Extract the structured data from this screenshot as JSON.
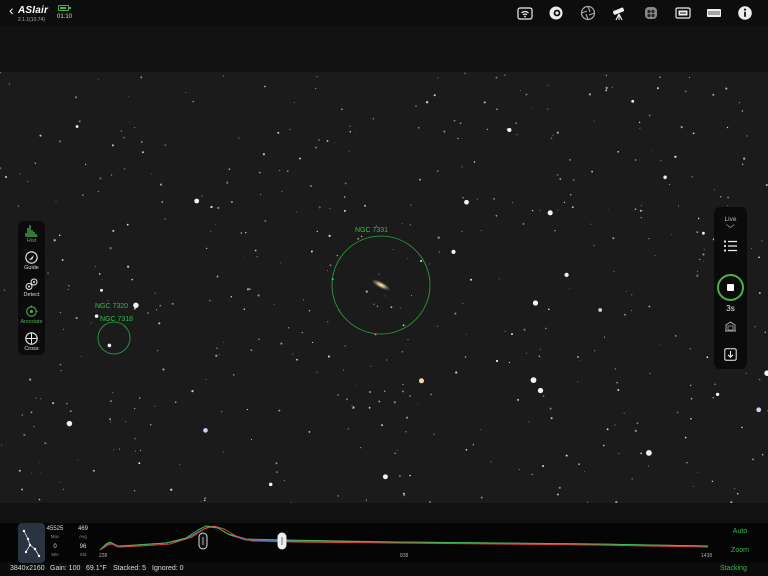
{
  "app": {
    "logo": "ASIair",
    "version": "2.1.1(10.74)",
    "time": "01:10",
    "battery_level": 0.65
  },
  "topbar_icons": [
    "wifi-icon",
    "camera-icon",
    "aperture-icon",
    "telescope-icon",
    "filter-wheel-icon",
    "focuser-icon",
    "storage-icon",
    "info-icon"
  ],
  "sky_objects": [
    {
      "label": "NGC 7331"
    },
    {
      "label": "NGC 7320"
    },
    {
      "label": "NGC 7318"
    }
  ],
  "left_toolbar": [
    {
      "label": "Hist",
      "icon": "histogram-icon",
      "active": true
    },
    {
      "label": "Guide",
      "icon": "guide-icon",
      "active": false
    },
    {
      "label": "Detect",
      "icon": "detect-icon",
      "active": false
    },
    {
      "label": "Annotate",
      "icon": "annotate-icon",
      "active": true
    },
    {
      "label": "Cross",
      "icon": "crosshair-icon",
      "active": false
    }
  ],
  "right_panel": {
    "mode": "Live",
    "exposure": "3s"
  },
  "histogram": {
    "stats": {
      "max": "45525",
      "max_label": "Max",
      "avg": "469",
      "avg_label": "Avg",
      "min": "0",
      "min_label": "Min",
      "std": "96",
      "std_label": "Std"
    },
    "ticks": [
      "238",
      "838",
      "1438"
    ],
    "auto_label": "Auto",
    "zoom_label": "Zoom",
    "colors": {
      "red": "#e0453a",
      "green": "#3fc04a",
      "blue": "#4a7ff0"
    }
  },
  "statusbar": {
    "resolution": "3840x2160",
    "gain": "Gain: 100",
    "temperature": "69.1°F",
    "stacked": "Stacked: 5",
    "ignored": "Ignored: 0",
    "mode": "Stacking"
  },
  "accent": "#2fbf4a"
}
